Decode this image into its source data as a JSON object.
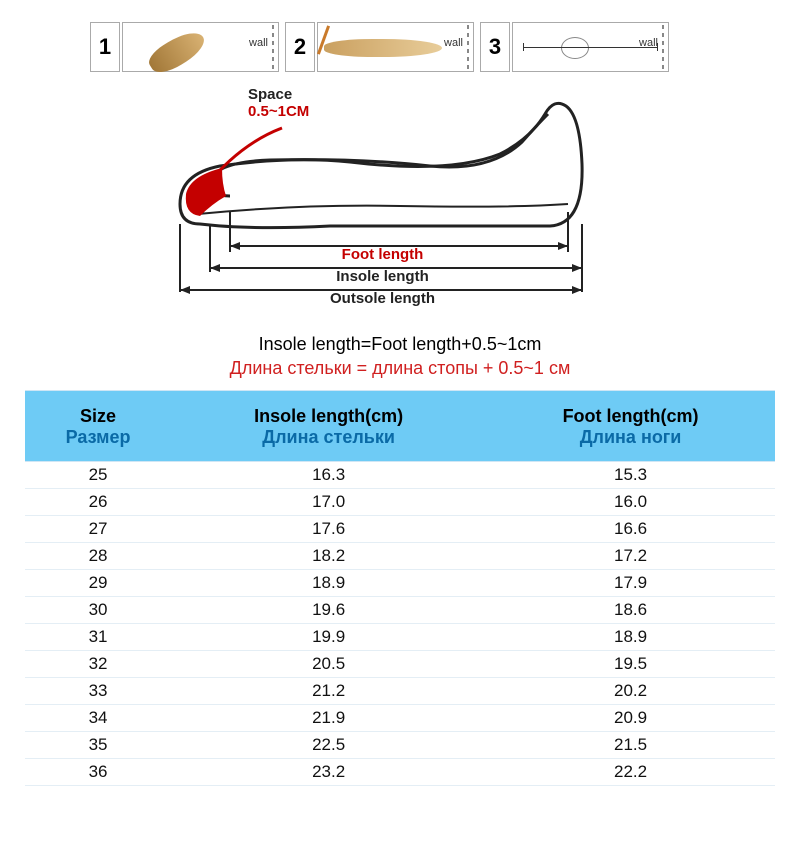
{
  "steps": {
    "nums": [
      "1",
      "2",
      "3"
    ],
    "wall_label": "wall"
  },
  "diagram": {
    "space_label": "Space",
    "space_value": "0.5~1CM",
    "foot_length_label": "Foot length",
    "insole_length_label": "Insole length",
    "outsole_length_label": "Outsole length",
    "colors": {
      "outline": "#222222",
      "space_fill": "#c40000",
      "arrow": "#222222",
      "foot_label": "#c40000"
    }
  },
  "formula": {
    "en": "Insole length=Foot length+0.5~1cm",
    "ru": "Длина стельки = длина стопы + 0.5~1 см"
  },
  "table": {
    "header_bg": "#6ecbf5",
    "header_text_ru_color": "#0a6aa6",
    "columns": [
      {
        "en": "Size",
        "ru": "Размер"
      },
      {
        "en": "Insole length(cm)",
        "ru": "Длина стельки"
      },
      {
        "en": "Foot length(cm)",
        "ru": "Длина ноги"
      }
    ],
    "rows": [
      [
        "25",
        "16.3",
        "15.3"
      ],
      [
        "26",
        "17.0",
        "16.0"
      ],
      [
        "27",
        "17.6",
        "16.6"
      ],
      [
        "28",
        "18.2",
        "17.2"
      ],
      [
        "29",
        "18.9",
        "17.9"
      ],
      [
        "30",
        "19.6",
        "18.6"
      ],
      [
        "31",
        "19.9",
        "18.9"
      ],
      [
        "32",
        "20.5",
        "19.5"
      ],
      [
        "33",
        "21.2",
        "20.2"
      ],
      [
        "34",
        "21.9",
        "20.9"
      ],
      [
        "35",
        "22.5",
        "21.5"
      ],
      [
        "36",
        "23.2",
        "22.2"
      ]
    ]
  }
}
